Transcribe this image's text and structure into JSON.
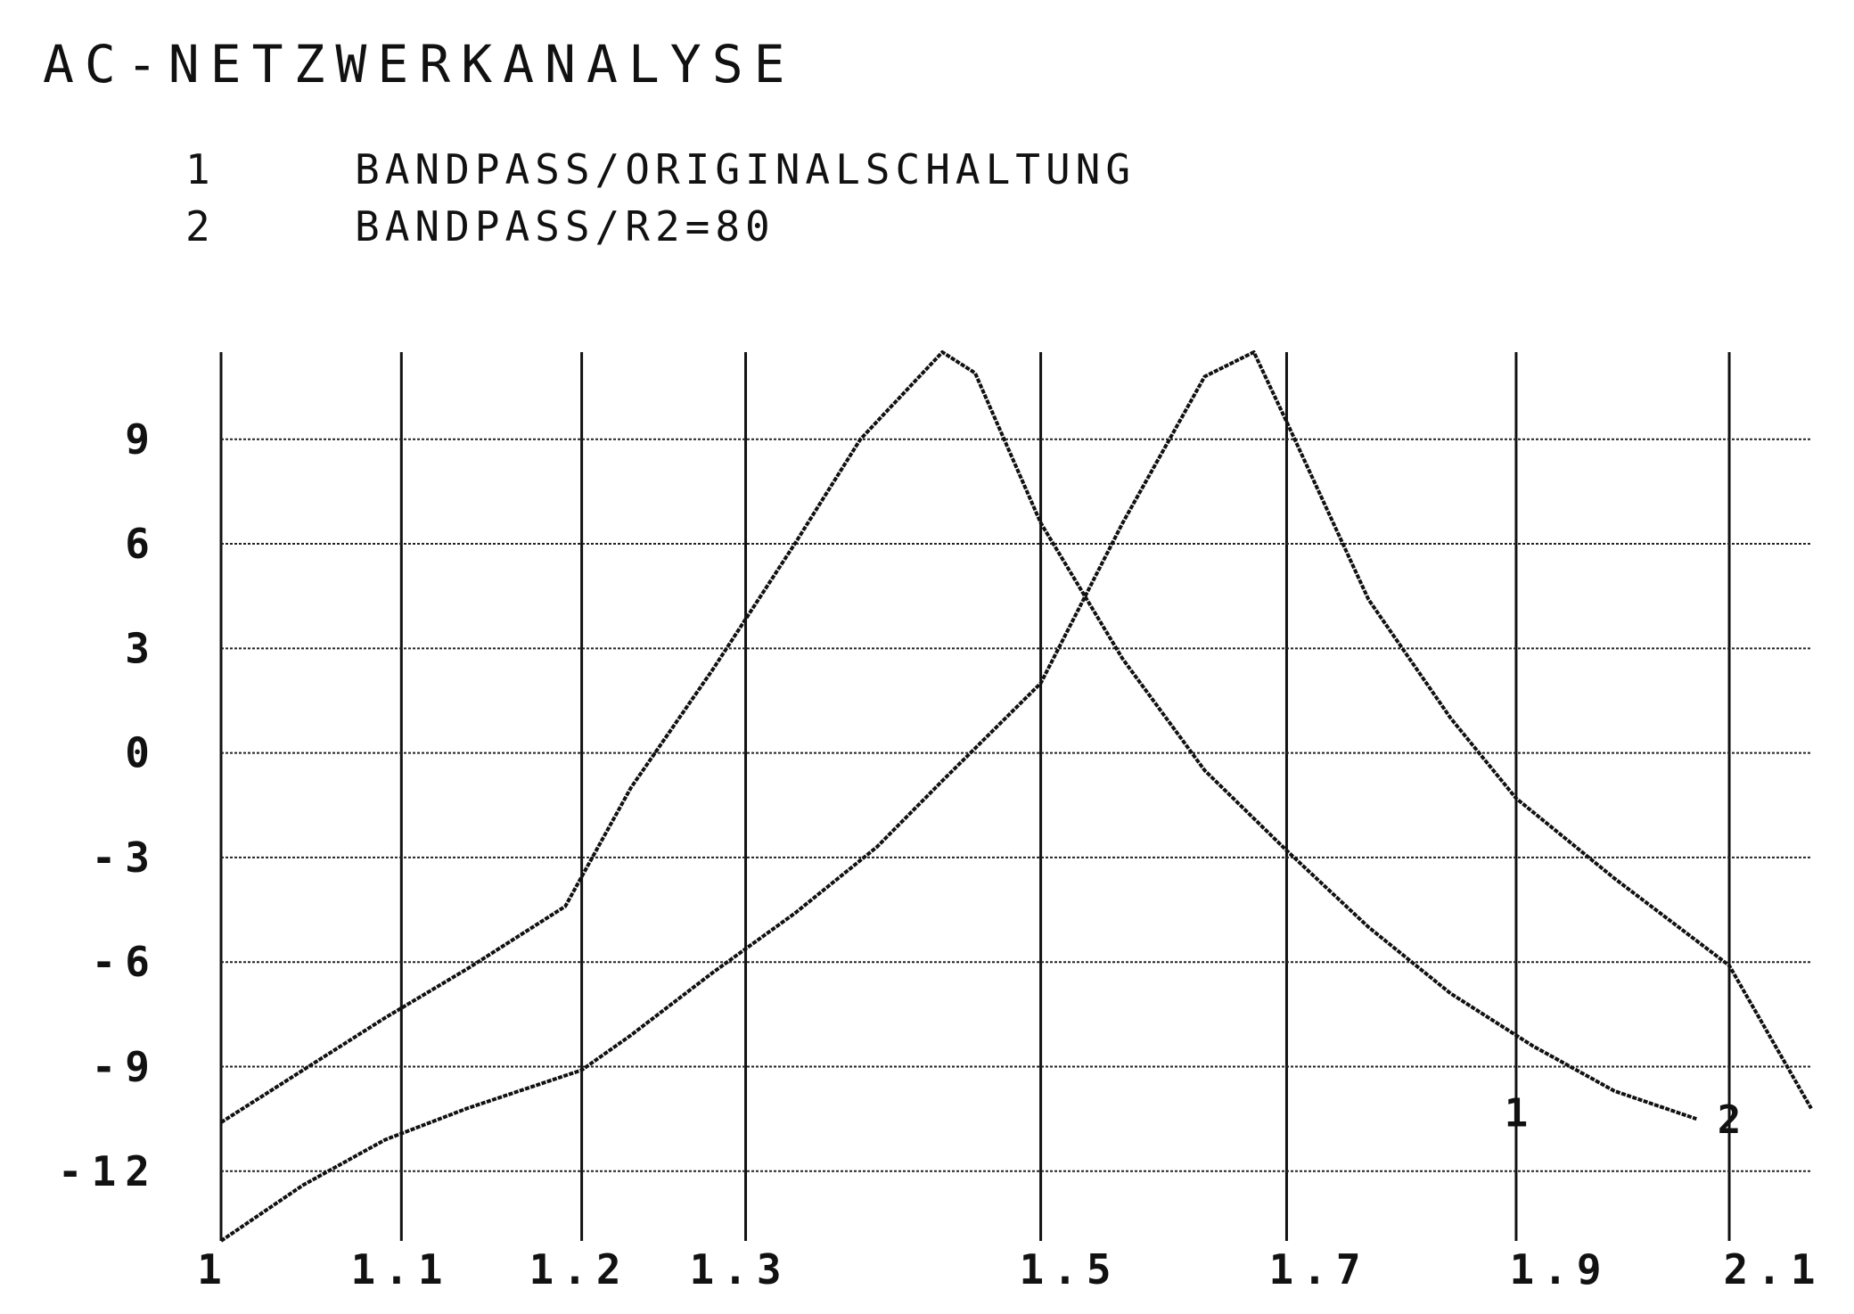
{
  "chart_data": {
    "type": "line",
    "title": "AC-NETZWERKANALYSE",
    "legend_placement": "top-left",
    "legend": [
      {
        "number": "1",
        "text": "BANDPASS/ORIGINALSCHALTUNG"
      },
      {
        "number": "2",
        "text": "BANDPASS/R2=80"
      }
    ],
    "x_ticks": [
      {
        "value": 1.0,
        "label": "1"
      },
      {
        "value": 1.1,
        "label": "1.1"
      },
      {
        "value": 1.2,
        "label": "1.2"
      },
      {
        "value": 1.3,
        "label": "1.3"
      },
      {
        "value": 1.5,
        "label": "1.5"
      },
      {
        "value": 1.7,
        "label": "1.7"
      },
      {
        "value": 1.9,
        "label": "1.9"
      },
      {
        "value": 2.1,
        "label": "2.1"
      }
    ],
    "x_gridlines": [
      1.0,
      1.11,
      1.22,
      1.32,
      1.5,
      1.65,
      1.79,
      1.92
    ],
    "y_ticks": [
      {
        "value": 9,
        "label": "9"
      },
      {
        "value": 6,
        "label": "6"
      },
      {
        "value": 3,
        "label": "3"
      },
      {
        "value": 0,
        "label": "0"
      },
      {
        "value": -3,
        "label": "-3"
      },
      {
        "value": -6,
        "label": "-6"
      },
      {
        "value": -9,
        "label": "-9"
      },
      {
        "value": -12,
        "label": "-12"
      }
    ],
    "xlim": [
      1.0,
      1.97
    ],
    "ylim": [
      -14,
      11.5
    ],
    "grid": true,
    "series": [
      {
        "name": "1",
        "points": [
          [
            1.0,
            -10.6
          ],
          [
            1.05,
            -9.1
          ],
          [
            1.1,
            -7.6
          ],
          [
            1.15,
            -6.2
          ],
          [
            1.21,
            -4.4
          ],
          [
            1.25,
            -1.0
          ],
          [
            1.3,
            2.4
          ],
          [
            1.35,
            6.0
          ],
          [
            1.39,
            9.0
          ],
          [
            1.44,
            11.5
          ],
          [
            1.46,
            10.9
          ],
          [
            1.5,
            6.6
          ],
          [
            1.55,
            2.7
          ],
          [
            1.6,
            -0.5
          ],
          [
            1.65,
            -2.8
          ],
          [
            1.7,
            -5.0
          ],
          [
            1.75,
            -6.9
          ],
          [
            1.8,
            -8.4
          ],
          [
            1.85,
            -9.7
          ],
          [
            1.9,
            -10.5
          ]
        ]
      },
      {
        "name": "2",
        "points": [
          [
            1.0,
            -14.0
          ],
          [
            1.05,
            -12.4
          ],
          [
            1.1,
            -11.1
          ],
          [
            1.15,
            -10.2
          ],
          [
            1.22,
            -9.1
          ],
          [
            1.25,
            -8.1
          ],
          [
            1.3,
            -6.3
          ],
          [
            1.35,
            -4.6
          ],
          [
            1.4,
            -2.7
          ],
          [
            1.44,
            -0.8
          ],
          [
            1.5,
            2.0
          ],
          [
            1.55,
            6.6
          ],
          [
            1.6,
            10.8
          ],
          [
            1.63,
            11.5
          ],
          [
            1.65,
            9.5
          ],
          [
            1.7,
            4.4
          ],
          [
            1.75,
            1.0
          ],
          [
            1.79,
            -1.3
          ],
          [
            1.85,
            -3.6
          ],
          [
            1.92,
            -6.1
          ],
          [
            1.97,
            -10.2
          ]
        ]
      }
    ],
    "end_labels": [
      {
        "series": "1",
        "text": "1",
        "x": 1.79,
        "y": -10.3
      },
      {
        "series": "2",
        "text": "2",
        "x": 1.92,
        "y": -10.5
      }
    ]
  }
}
